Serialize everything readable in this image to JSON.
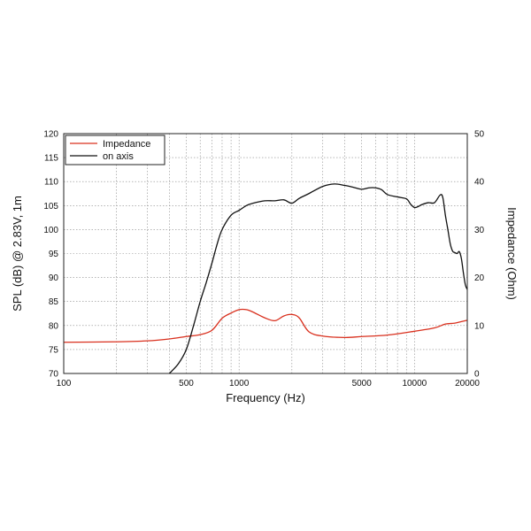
{
  "chart_data": {
    "type": "line",
    "xlabel": "Frequency (Hz)",
    "ylabel": "SPL (dB) @ 2.83V, 1m",
    "y2label": "Impedance (Ohm)",
    "x_scale": "log",
    "xlim": [
      100,
      20000
    ],
    "ylim": [
      70,
      120
    ],
    "y2lim": [
      0,
      50
    ],
    "grid": true,
    "legend_position": "top-left",
    "x_ticks": [
      {
        "value": 100,
        "label": "100"
      },
      {
        "value": 500,
        "label": "500"
      },
      {
        "value": 1000,
        "label": "1000"
      },
      {
        "value": 5000,
        "label": "5000"
      },
      {
        "value": 10000,
        "label": "10000"
      },
      {
        "value": 20000,
        "label": "20000"
      }
    ],
    "x_gridlines": [
      200,
      300,
      400,
      500,
      600,
      700,
      800,
      900,
      1000,
      2000,
      3000,
      4000,
      5000,
      6000,
      7000,
      8000,
      9000,
      10000,
      20000
    ],
    "y_ticks": [
      70,
      75,
      80,
      85,
      90,
      95,
      100,
      105,
      110,
      115,
      120
    ],
    "y2_ticks": [
      0,
      10,
      20,
      30,
      40,
      50
    ],
    "series": [
      {
        "name": "Impedance",
        "color": "#d9301e",
        "axis": "right",
        "x": [
          100,
          200,
          300,
          400,
          500,
          600,
          700,
          800,
          900,
          1000,
          1100,
          1200,
          1400,
          1600,
          1800,
          2000,
          2200,
          2500,
          3000,
          4000,
          5000,
          7000,
          10000,
          13000,
          15000,
          17000,
          20000
        ],
        "values": [
          6.5,
          6.6,
          6.8,
          7.2,
          7.7,
          8.1,
          9.0,
          11.5,
          12.6,
          13.3,
          13.3,
          12.8,
          11.6,
          11.0,
          12.0,
          12.3,
          11.6,
          8.7,
          7.8,
          7.5,
          7.7,
          8.0,
          8.8,
          9.5,
          10.3,
          10.5,
          11.1
        ]
      },
      {
        "name": "on axis",
        "color": "#111111",
        "axis": "left",
        "x": [
          400,
          450,
          500,
          550,
          600,
          650,
          700,
          750,
          800,
          900,
          1000,
          1100,
          1200,
          1400,
          1600,
          1800,
          2000,
          2200,
          2500,
          3000,
          3500,
          4000,
          4500,
          5000,
          5500,
          6000,
          6500,
          7000,
          8000,
          9000,
          9500,
          10000,
          10500,
          11000,
          12000,
          13000,
          14000,
          14500,
          15000,
          15500,
          16000,
          16500,
          17000,
          17500,
          18000,
          18500,
          19000,
          19500,
          20000
        ],
        "values": [
          70,
          72,
          75,
          80,
          85,
          89,
          93,
          97,
          100,
          103,
          104,
          105,
          105.5,
          106,
          106,
          106.2,
          105.5,
          106.5,
          107.5,
          109,
          109.5,
          109.2,
          108.8,
          108.4,
          108.7,
          108.7,
          108.3,
          107.3,
          106.8,
          106.4,
          105.3,
          104.6,
          104.8,
          105.2,
          105.6,
          105.6,
          107.2,
          106.7,
          103,
          100,
          97,
          95.5,
          95.2,
          95.0,
          95.4,
          94,
          91,
          88.5,
          87.5
        ]
      }
    ]
  }
}
